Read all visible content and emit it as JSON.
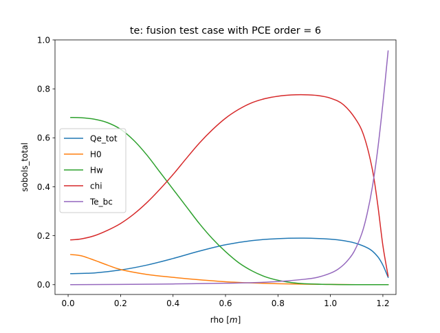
{
  "chart_data": {
    "type": "line",
    "title": "te: fusion test case with PCE order = 6",
    "xlabel": "rho [m]",
    "xlabel_parts": {
      "prefix": "rho [",
      "unit": "m",
      "suffix": "]"
    },
    "ylabel": "sobols_total",
    "xlim": [
      -0.05,
      1.25
    ],
    "ylim": [
      -0.04,
      1.0
    ],
    "xticks": [
      0.0,
      0.2,
      0.4,
      0.6,
      0.8,
      1.0,
      1.2
    ],
    "xtick_labels": [
      "0.0",
      "0.2",
      "0.4",
      "0.6",
      "0.8",
      "1.0",
      "1.2"
    ],
    "yticks": [
      0.0,
      0.2,
      0.4,
      0.6,
      0.8,
      1.0
    ],
    "ytick_labels": [
      "0.0",
      "0.2",
      "0.4",
      "0.6",
      "0.8",
      "1.0"
    ],
    "grid": false,
    "legend_position": "center-left",
    "series": [
      {
        "name": "Qe_tot",
        "color": "#1f77b4",
        "x": [
          0.01,
          0.1,
          0.2,
          0.3,
          0.4,
          0.5,
          0.6,
          0.7,
          0.8,
          0.9,
          1.0,
          1.05,
          1.1,
          1.15,
          1.18,
          1.2,
          1.22
        ],
        "y": [
          0.045,
          0.048,
          0.06,
          0.08,
          0.107,
          0.137,
          0.163,
          0.18,
          0.188,
          0.19,
          0.186,
          0.18,
          0.168,
          0.145,
          0.115,
          0.08,
          0.03
        ]
      },
      {
        "name": "H0",
        "color": "#ff7f0e",
        "x": [
          0.01,
          0.05,
          0.1,
          0.15,
          0.2,
          0.3,
          0.4,
          0.5,
          0.6,
          0.7,
          0.8,
          0.9,
          1.0,
          1.1,
          1.22
        ],
        "y": [
          0.123,
          0.118,
          0.1,
          0.08,
          0.062,
          0.042,
          0.03,
          0.02,
          0.012,
          0.007,
          0.004,
          0.002,
          0.001,
          0.0,
          0.0
        ]
      },
      {
        "name": "Hw",
        "color": "#2ca02c",
        "x": [
          0.01,
          0.05,
          0.1,
          0.15,
          0.2,
          0.25,
          0.3,
          0.35,
          0.4,
          0.45,
          0.5,
          0.55,
          0.6,
          0.65,
          0.7,
          0.75,
          0.8,
          0.85,
          0.9,
          1.0,
          1.1,
          1.22
        ],
        "y": [
          0.683,
          0.682,
          0.676,
          0.662,
          0.635,
          0.59,
          0.53,
          0.46,
          0.39,
          0.32,
          0.25,
          0.188,
          0.135,
          0.09,
          0.057,
          0.033,
          0.018,
          0.009,
          0.004,
          0.001,
          0.0,
          0.0
        ]
      },
      {
        "name": "chi",
        "color": "#d62728",
        "x": [
          0.01,
          0.05,
          0.1,
          0.15,
          0.2,
          0.25,
          0.3,
          0.35,
          0.4,
          0.45,
          0.5,
          0.55,
          0.6,
          0.65,
          0.7,
          0.75,
          0.8,
          0.85,
          0.9,
          0.95,
          1.0,
          1.05,
          1.1,
          1.13,
          1.16,
          1.18,
          1.2,
          1.22
        ],
        "y": [
          0.183,
          0.187,
          0.2,
          0.222,
          0.25,
          0.288,
          0.335,
          0.39,
          0.45,
          0.515,
          0.578,
          0.633,
          0.68,
          0.716,
          0.743,
          0.76,
          0.77,
          0.775,
          0.776,
          0.773,
          0.762,
          0.735,
          0.67,
          0.6,
          0.47,
          0.33,
          0.16,
          0.035
        ]
      },
      {
        "name": "Te_bc",
        "color": "#9467bd",
        "x": [
          0.01,
          0.2,
          0.4,
          0.6,
          0.7,
          0.8,
          0.9,
          0.95,
          1.0,
          1.03,
          1.06,
          1.09,
          1.12,
          1.14,
          1.16,
          1.18,
          1.2,
          1.22
        ],
        "y": [
          0.0,
          0.001,
          0.003,
          0.006,
          0.008,
          0.013,
          0.022,
          0.03,
          0.047,
          0.064,
          0.092,
          0.135,
          0.21,
          0.29,
          0.4,
          0.55,
          0.74,
          0.955
        ]
      }
    ]
  }
}
